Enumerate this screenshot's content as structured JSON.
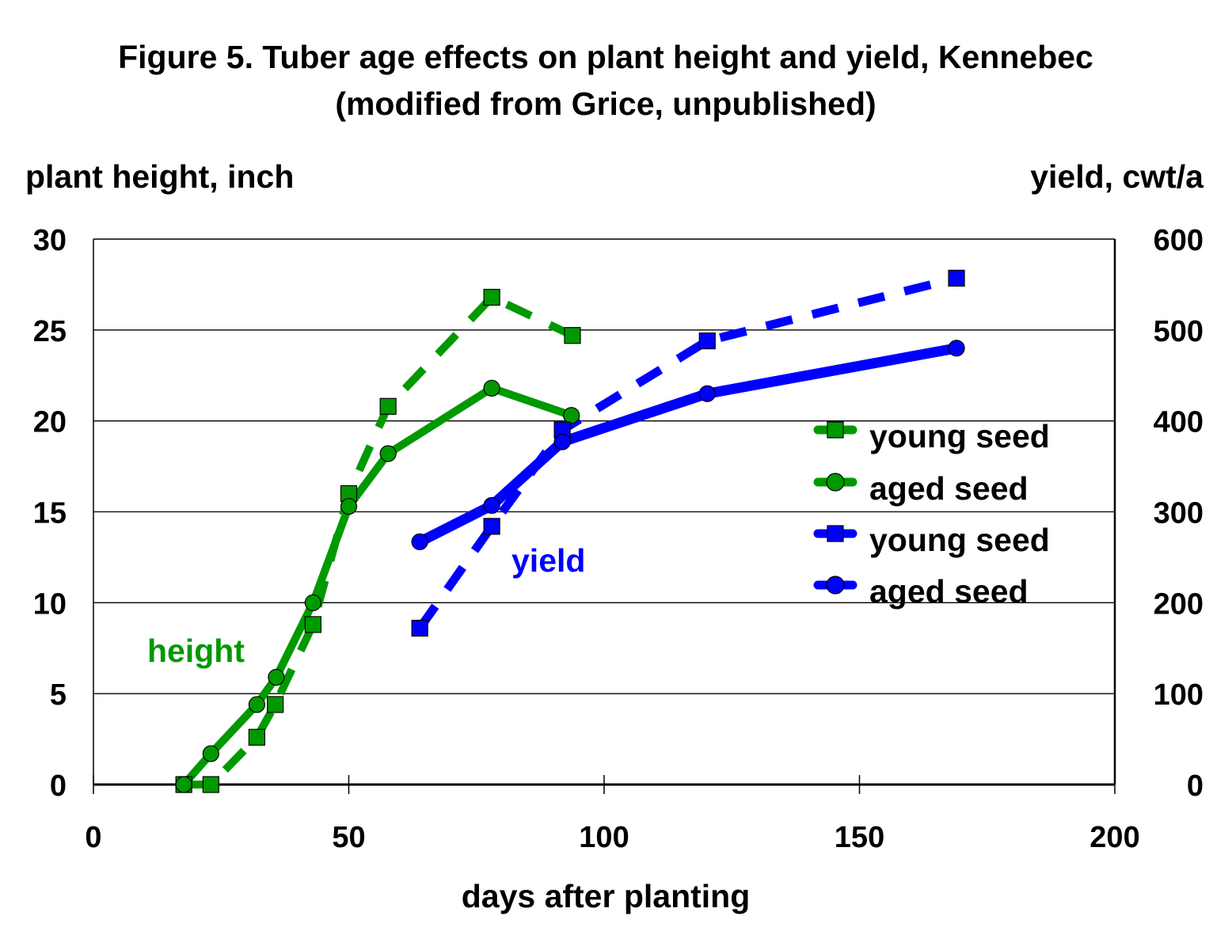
{
  "chart_data": {
    "type": "line",
    "title": "Figure 5. Tuber age effects on plant height and yield, Kennebec",
    "subtitle": "(modified from Grice, unpublished)",
    "xlabel": "days after planting",
    "ylabel_left": "plant height, inch",
    "ylabel_right": "yield, cwt/a",
    "xlim": [
      0,
      200
    ],
    "ylim_left": [
      0,
      30
    ],
    "ylim_right": [
      0,
      600
    ],
    "x_ticks": [
      0,
      50,
      100,
      150,
      200
    ],
    "y_ticks_left": [
      0,
      5,
      10,
      15,
      20,
      25,
      30
    ],
    "y_ticks_right": [
      0,
      100,
      200,
      300,
      400,
      500,
      600
    ],
    "grid": "horizontal",
    "legend_position": "center-right",
    "annotations": [
      {
        "text": "height",
        "color": "#009900"
      },
      {
        "text": "yield",
        "color": "#0000FF"
      }
    ],
    "series": [
      {
        "name": "young seed",
        "group": "height",
        "axis": "left",
        "color": "#009900",
        "marker": "square",
        "dashed": true,
        "x": [
          17.7,
          23,
          32,
          35.6,
          43,
          50,
          57.7,
          78,
          93.8
        ],
        "y": [
          0,
          0,
          2.6,
          4.4,
          8.8,
          16,
          20.8,
          26.8,
          24.7
        ]
      },
      {
        "name": "aged seed",
        "group": "height",
        "axis": "left",
        "color": "#009900",
        "marker": "circle",
        "dashed": false,
        "x": [
          17.7,
          23,
          32,
          35.8,
          43,
          50,
          57.7,
          78,
          93.6
        ],
        "y": [
          0,
          1.7,
          4.4,
          5.9,
          10,
          15.3,
          18.2,
          21.8,
          20.3
        ]
      },
      {
        "name": "young seed",
        "group": "yield",
        "axis": "right",
        "color": "#0000FF",
        "marker": "square",
        "dashed": true,
        "x": [
          63.9,
          78,
          91.8,
          120.2,
          169
        ],
        "y": [
          172,
          284,
          390,
          488,
          557
        ]
      },
      {
        "name": "aged seed",
        "group": "yield",
        "axis": "right",
        "color": "#0000FF",
        "marker": "circle",
        "dashed": false,
        "x": [
          63.9,
          78,
          91.8,
          120.2,
          169
        ],
        "y": [
          267,
          307,
          377,
          430,
          480
        ]
      }
    ]
  }
}
